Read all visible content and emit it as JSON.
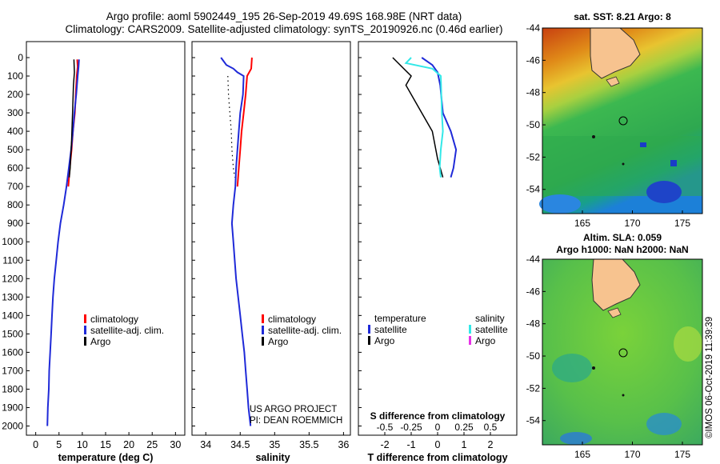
{
  "title": {
    "line1": "Argo profile: aoml 5902449_195 26-Sep-2019 49.69S 168.98E (NRT data)",
    "line2": "Climatology: CARS2009. Satellite-adjusted climatology: synTS_20190926.nc (0.46d earlier)"
  },
  "credit": {
    "project": "US ARGO PROJECT",
    "pi": "PI: DEAN ROEMMICH",
    "watermark": "©IMOS 06-Oct-2019 11:39:39"
  },
  "colors": {
    "climatology": "#ff0000",
    "satellite": "#1f2ad8",
    "argo": "#000000",
    "salinity_satellite": "#33e8e8",
    "salinity_argo": "#e830e8"
  },
  "chart_data": [
    {
      "id": "temperature",
      "type": "line",
      "xlabel": "temperature (deg C)",
      "ylabel": "",
      "xlim": [
        -2,
        32
      ],
      "ylim": [
        2050,
        0
      ],
      "xticks": [
        0,
        5,
        10,
        15,
        20,
        25,
        30
      ],
      "xtick_labels": [
        "0",
        "5",
        "10",
        "15",
        "20",
        "25",
        "30"
      ],
      "yticks": [
        0,
        100,
        200,
        300,
        400,
        500,
        600,
        700,
        800,
        900,
        1000,
        1100,
        1200,
        1300,
        1400,
        1500,
        1600,
        1700,
        1800,
        1900,
        2000
      ],
      "legend": [
        "climatology",
        "satellite-adj. clim.",
        "Argo"
      ],
      "series": [
        {
          "name": "climatology",
          "color_key": "climatology",
          "width": 2,
          "points": [
            [
              8.9,
              10
            ],
            [
              9.0,
              50
            ],
            [
              8.8,
              100
            ],
            [
              8.6,
              200
            ],
            [
              8.4,
              300
            ],
            [
              8.0,
              400
            ],
            [
              7.7,
              500
            ],
            [
              7.3,
              600
            ],
            [
              7.0,
              700
            ]
          ]
        },
        {
          "name": "satellite-adj. clim.",
          "color_key": "satellite",
          "width": 2,
          "points": [
            [
              9.3,
              10
            ],
            [
              9.2,
              50
            ],
            [
              9.0,
              100
            ],
            [
              8.7,
              200
            ],
            [
              8.3,
              300
            ],
            [
              8.0,
              400
            ],
            [
              7.6,
              500
            ],
            [
              7.1,
              600
            ],
            [
              6.6,
              700
            ],
            [
              6.0,
              800
            ],
            [
              5.3,
              900
            ],
            [
              4.8,
              1000
            ],
            [
              4.4,
              1100
            ],
            [
              4.0,
              1200
            ],
            [
              3.7,
              1300
            ],
            [
              3.5,
              1400
            ],
            [
              3.3,
              1500
            ],
            [
              3.1,
              1600
            ],
            [
              2.9,
              1700
            ],
            [
              2.8,
              1800
            ],
            [
              2.6,
              1900
            ],
            [
              2.5,
              2000
            ]
          ]
        },
        {
          "name": "Argo",
          "color_key": "argo",
          "width": 1.5,
          "points": [
            [
              8.2,
              10
            ],
            [
              8.3,
              80
            ],
            [
              8.1,
              150
            ],
            [
              7.9,
              300
            ],
            [
              7.7,
              450
            ],
            [
              7.4,
              600
            ],
            [
              7.2,
              650
            ]
          ]
        }
      ]
    },
    {
      "id": "salinity",
      "type": "line",
      "xlabel": "salinity",
      "ylabel": "",
      "xlim": [
        33.8,
        36.1
      ],
      "ylim": [
        2050,
        0
      ],
      "xticks": [
        34,
        34.5,
        35,
        35.5,
        36
      ],
      "xtick_labels": [
        "34",
        "34.5",
        "35",
        "35.5",
        "36"
      ],
      "legend": [
        "climatology",
        "satellite-adj. clim.",
        "Argo"
      ],
      "series": [
        {
          "name": "climatology",
          "color_key": "climatology",
          "width": 2,
          "points": [
            [
              34.67,
              0
            ],
            [
              34.66,
              60
            ],
            [
              34.6,
              100
            ],
            [
              34.58,
              200
            ],
            [
              34.55,
              300
            ],
            [
              34.52,
              400
            ],
            [
              34.5,
              500
            ],
            [
              34.48,
              600
            ],
            [
              34.46,
              700
            ]
          ]
        },
        {
          "name": "satellite-adj. clim.",
          "color_key": "satellite",
          "width": 2,
          "points": [
            [
              34.22,
              0
            ],
            [
              34.3,
              40
            ],
            [
              34.4,
              60
            ],
            [
              34.46,
              80
            ],
            [
              34.55,
              100
            ],
            [
              34.54,
              200
            ],
            [
              34.5,
              300
            ],
            [
              34.48,
              400
            ],
            [
              34.46,
              500
            ],
            [
              34.44,
              600
            ],
            [
              34.43,
              700
            ],
            [
              34.4,
              800
            ],
            [
              34.38,
              900
            ],
            [
              34.4,
              1000
            ],
            [
              34.42,
              1100
            ],
            [
              34.44,
              1200
            ],
            [
              34.47,
              1300
            ],
            [
              34.5,
              1400
            ],
            [
              34.53,
              1500
            ],
            [
              34.56,
              1600
            ],
            [
              34.58,
              1700
            ],
            [
              34.6,
              1800
            ],
            [
              34.62,
              1900
            ],
            [
              34.65,
              2000
            ]
          ]
        },
        {
          "name": "Argo",
          "color_key": "argo",
          "width": 1.2,
          "dotted": true,
          "points": [
            [
              34.32,
              100
            ],
            [
              34.33,
              200
            ],
            [
              34.35,
              300
            ],
            [
              34.37,
              400
            ],
            [
              34.38,
              500
            ],
            [
              34.4,
              600
            ],
            [
              34.42,
              650
            ]
          ]
        }
      ]
    },
    {
      "id": "difference",
      "type": "line",
      "xlabel": "T difference from climatology",
      "top_xlabel": "S difference from climatology",
      "xlim": [
        -3,
        3
      ],
      "ylim": [
        2050,
        0
      ],
      "xticks": [
        -2,
        -1,
        0,
        1,
        2
      ],
      "xtick_labels": [
        "-2",
        "-1",
        "0",
        "1",
        "2"
      ],
      "s_xlim": [
        -0.75,
        0.75
      ],
      "s_xticks": [
        -0.5,
        -0.25,
        0,
        0.25,
        0.5
      ],
      "s_xtick_labels": [
        "-0.5",
        "-0.25",
        "0",
        "0.25",
        "0.5"
      ],
      "legend_temperature_title": "temperature",
      "legend_salinity_title": "salinity",
      "legend": [
        "satellite",
        "Argo"
      ],
      "series": [
        {
          "name": "temperature satellite",
          "color_key": "satellite",
          "width": 2,
          "axis": "T",
          "points": [
            [
              -0.6,
              0
            ],
            [
              -0.2,
              40
            ],
            [
              0.0,
              80
            ],
            [
              0.1,
              150
            ],
            [
              0.2,
              300
            ],
            [
              0.5,
              400
            ],
            [
              0.7,
              500
            ],
            [
              0.6,
              600
            ],
            [
              0.5,
              650
            ]
          ]
        },
        {
          "name": "temperature Argo",
          "color_key": "argo",
          "width": 1.5,
          "axis": "T",
          "points": [
            [
              -1.7,
              0
            ],
            [
              -1.0,
              100
            ],
            [
              -1.2,
              150
            ],
            [
              -0.6,
              300
            ],
            [
              -0.2,
              400
            ],
            [
              0.0,
              550
            ],
            [
              0.2,
              650
            ]
          ]
        },
        {
          "name": "salinity satellite",
          "color_key": "salinity_satellite",
          "width": 2,
          "axis": "S",
          "points": [
            [
              -0.25,
              0
            ],
            [
              -0.3,
              30
            ],
            [
              -0.05,
              60
            ],
            [
              0.03,
              100
            ],
            [
              0.04,
              300
            ],
            [
              0.05,
              400
            ],
            [
              0.03,
              500
            ],
            [
              0.02,
              600
            ],
            [
              0.03,
              650
            ]
          ]
        }
      ]
    }
  ],
  "maps": [
    {
      "id": "sst",
      "title": "sat. SST: 8.21 Argo: 8",
      "xticks": [
        165,
        170,
        175
      ],
      "yticks": [
        -44,
        -46,
        -48,
        -50,
        -52,
        -54
      ],
      "lon_range": [
        161,
        177
      ],
      "lat_range": [
        -55.5,
        -44
      ]
    },
    {
      "id": "sla",
      "title_line1": "Altim. SLA: 0.059",
      "title_line2": "Argo h1000: NaN h2000: NaN",
      "xticks": [
        165,
        170,
        175
      ],
      "yticks": [
        -44,
        -46,
        -48,
        -50,
        -52,
        -54
      ],
      "lon_range": [
        161,
        177
      ],
      "lat_range": [
        -55.5,
        -44
      ]
    }
  ]
}
